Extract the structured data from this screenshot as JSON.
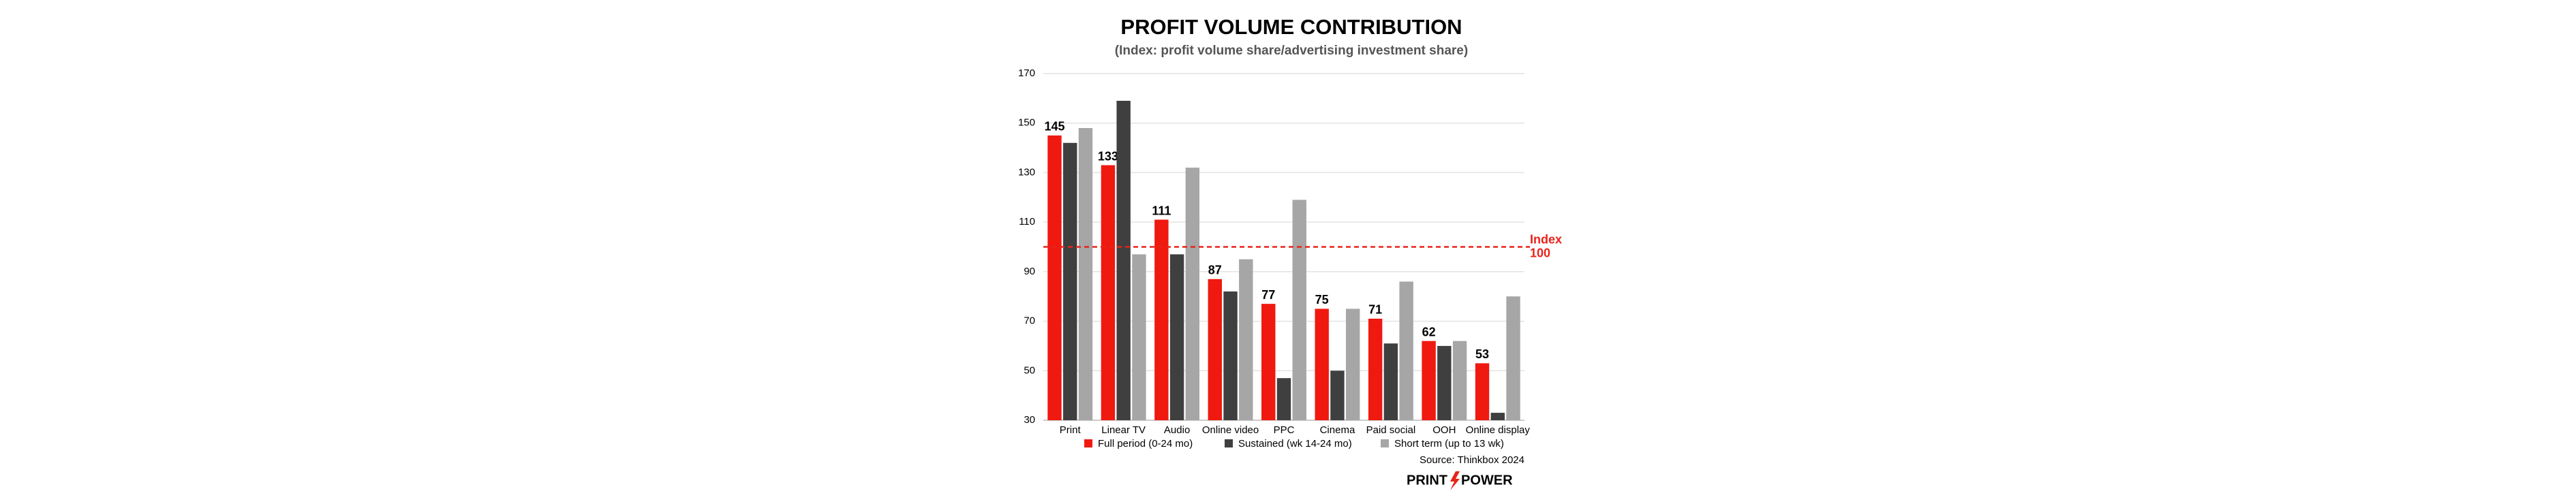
{
  "chart_data": {
    "type": "bar",
    "title": "PROFIT VOLUME CONTRIBUTION",
    "subtitle": "(Index: profit volume share/advertising investment share)",
    "categories": [
      "Print",
      "Linear TV",
      "Audio",
      "Online video",
      "PPC",
      "Cinema",
      "Paid social",
      "OOH",
      "Online display"
    ],
    "series": [
      {
        "name": "Full period (0-24 mo)",
        "color": "#f0190f",
        "data_labels": true,
        "values": [
          145,
          133,
          111,
          87,
          77,
          75,
          71,
          62,
          53
        ]
      },
      {
        "name": "Sustained (wk 14-24 mo)",
        "color": "#3f3f3f",
        "data_labels": false,
        "values": [
          142,
          159,
          97,
          82,
          47,
          50,
          61,
          60,
          33
        ]
      },
      {
        "name": "Short term (up to 13 wk)",
        "color": "#a6a6a6",
        "data_labels": false,
        "values": [
          148,
          97,
          132,
          95,
          119,
          75,
          86,
          62,
          80
        ]
      }
    ],
    "ylim": [
      30,
      170
    ],
    "yticks": [
      30,
      50,
      70,
      90,
      110,
      130,
      150,
      170
    ],
    "grid": true,
    "reference_line": {
      "value": 100,
      "color": "#e8231a",
      "label": [
        "Index",
        "100"
      ]
    },
    "source": "Source: Thinkbox 2024",
    "logo": [
      "PRINT",
      "POWER"
    ]
  }
}
